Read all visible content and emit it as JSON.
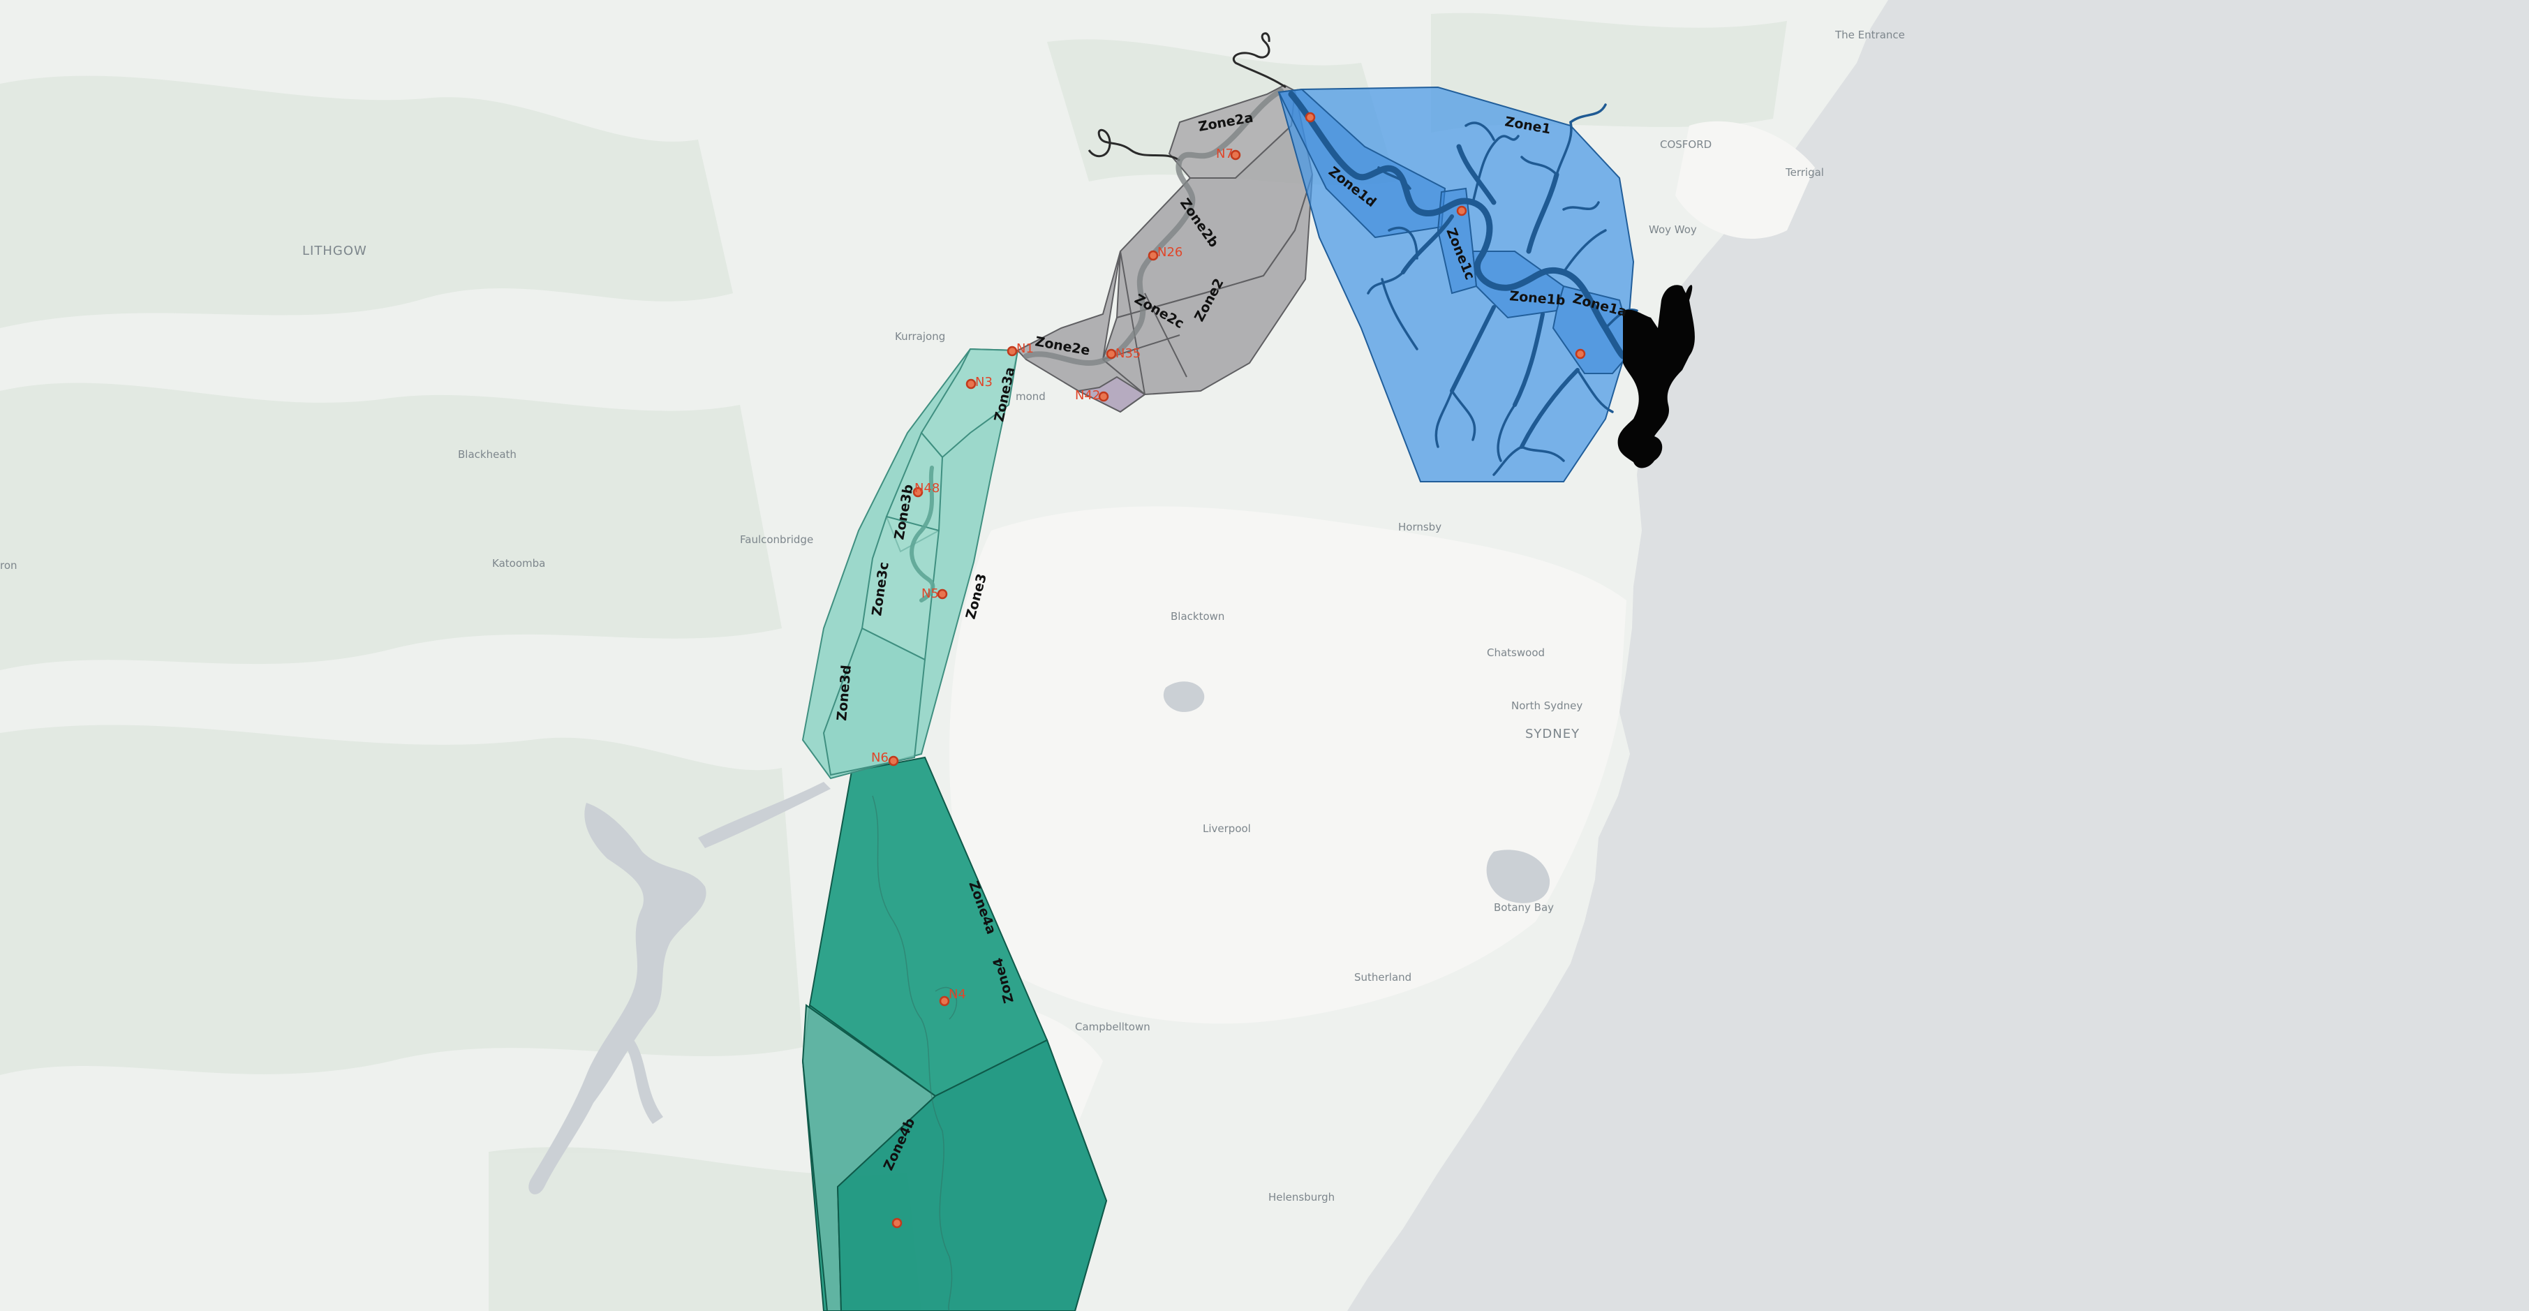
{
  "map": {
    "zones": [
      {
        "id": "Zone1",
        "color": "#4a98e6"
      },
      {
        "id": "Zone1a",
        "color": "#3a86d8"
      },
      {
        "id": "Zone1b",
        "color": "#3a86d8"
      },
      {
        "id": "Zone1c",
        "color": "#3a86d8"
      },
      {
        "id": "Zone1d",
        "color": "#3a86d8"
      },
      {
        "id": "Zone2",
        "color": "#a9a9ab"
      },
      {
        "id": "Zone2a",
        "color": "#a9a9ab"
      },
      {
        "id": "Zone2b",
        "color": "#a9a9ab"
      },
      {
        "id": "Zone2c",
        "color": "#a9a9ab"
      },
      {
        "id": "Zone2e",
        "color": "#a9a9ab"
      },
      {
        "id": "Zone3",
        "color": "#7fd0bf"
      },
      {
        "id": "Zone3a",
        "color": "#7fd0bf"
      },
      {
        "id": "Zone3b",
        "color": "#7fd0bf"
      },
      {
        "id": "Zone3c",
        "color": "#7fd0bf"
      },
      {
        "id": "Zone3d",
        "color": "#7fd0bf"
      },
      {
        "id": "Zone4",
        "color": "#1a9a80"
      },
      {
        "id": "Zone4a",
        "color": "#1a9a80"
      },
      {
        "id": "Zone4b",
        "color": "#1a9a80"
      }
    ],
    "stations": [
      "N26",
      "N5",
      "N3",
      "N6",
      "N48",
      "N42",
      "N35",
      "N7",
      "N1",
      "N4"
    ],
    "places": {
      "lithgow": "LITHGOW",
      "cosford": "COSFORD",
      "sydney": "SYDNEY",
      "kurrajong": "Kurrajong",
      "blackheath": "Blackheath",
      "katoomba": "Katoomba",
      "faulconbridge": "Faulconbridge",
      "blacktown": "Blacktown",
      "hornsby": "Hornsby",
      "chatswood": "Chatswood",
      "north_sydney": "North Sydney",
      "liverpool": "Liverpool",
      "campbelltown": "Campbelltown",
      "sutherland": "Sutherland",
      "helensburgh": "Helensburgh",
      "the_entrance": "The Entrance",
      "terrigal": "Terrigal",
      "woy_woy": "Woy Woy",
      "botany_bay": "Botany Bay",
      "richmond": "mond",
      "left_edge": "ron"
    },
    "colors": {
      "ocean": "#dde0e2",
      "land": "#eef1ee",
      "forest": "#e1e9e1",
      "urban": "#f5f5f3",
      "lake": "#c9cdd1",
      "estuary": "#000000"
    }
  }
}
